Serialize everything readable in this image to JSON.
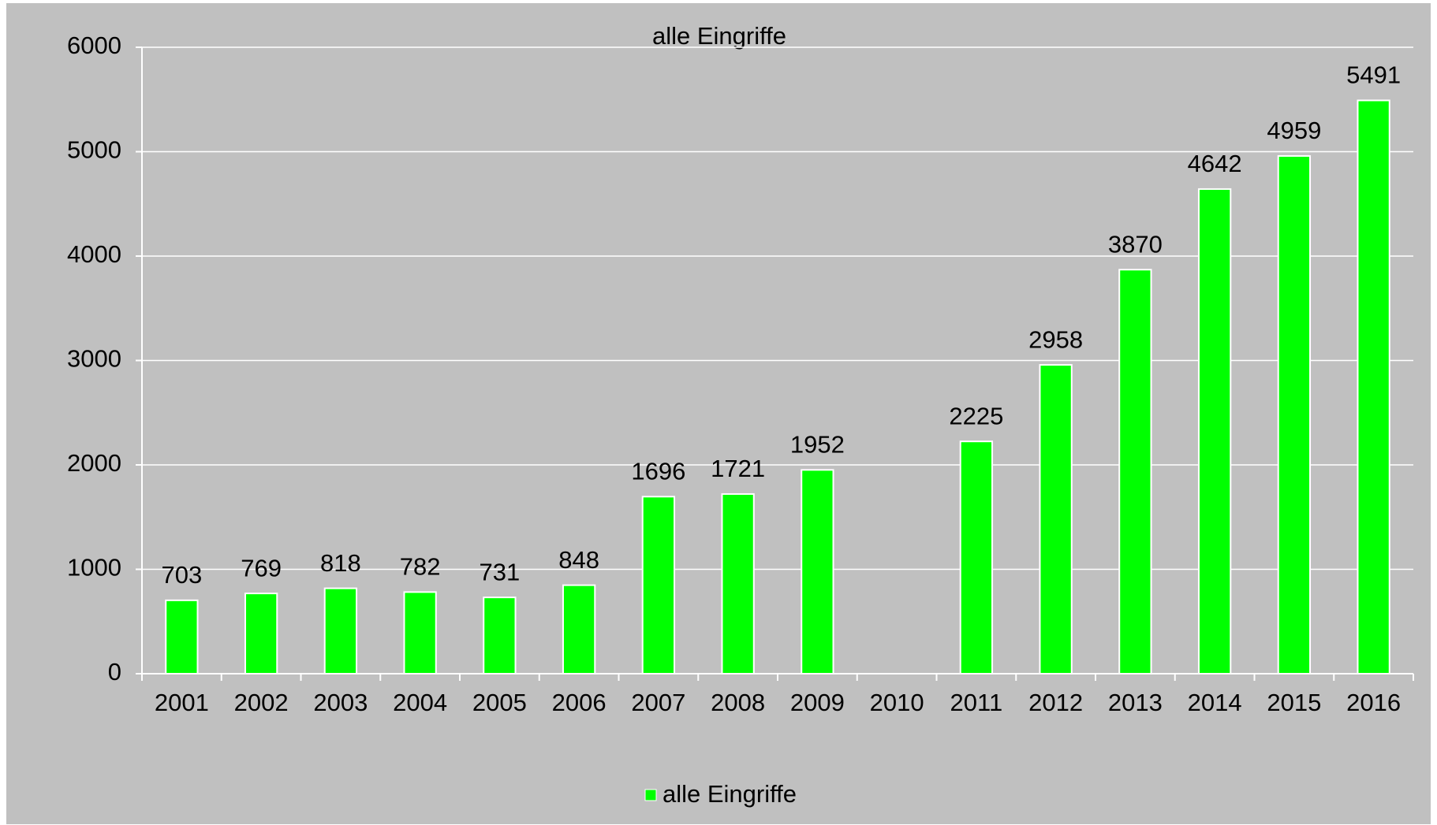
{
  "chart_data": {
    "type": "bar",
    "title": "alle Eingriffe",
    "categories": [
      "2001",
      "2002",
      "2003",
      "2004",
      "2005",
      "2006",
      "2007",
      "2008",
      "2009",
      "2010",
      "2011",
      "2012",
      "2013",
      "2014",
      "2015",
      "2016"
    ],
    "series": [
      {
        "name": "alle Eingriffe",
        "color": "#00ff00",
        "values": [
          703,
          769,
          818,
          782,
          731,
          848,
          1696,
          1721,
          1952,
          null,
          2225,
          2958,
          3870,
          4642,
          4959,
          5491
        ]
      }
    ],
    "ylim": [
      0,
      6000
    ],
    "yticks": [
      0,
      1000,
      2000,
      3000,
      4000,
      5000,
      6000
    ],
    "grid": true,
    "legend": "bottom"
  }
}
